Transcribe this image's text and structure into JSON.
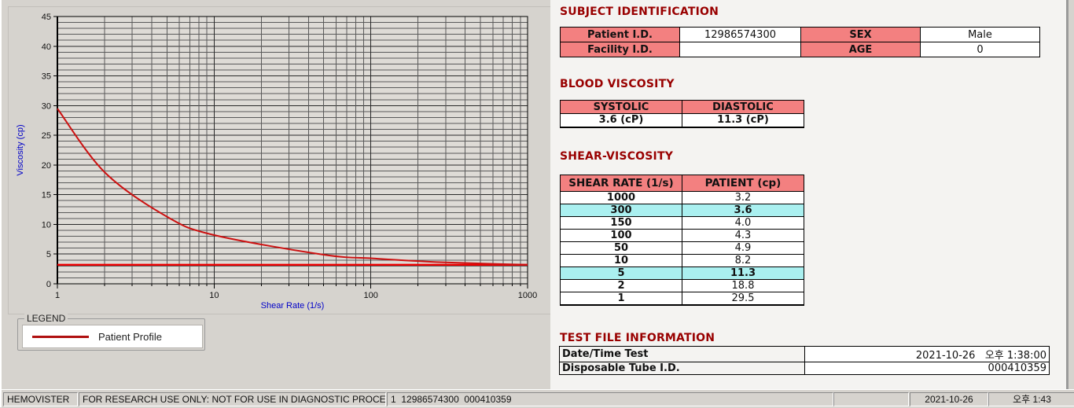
{
  "subject_identification": {
    "title": "SUBJECT IDENTIFICATION",
    "rows": [
      {
        "label1": "Patient I.D.",
        "value1": "12986574300",
        "label2": "SEX",
        "value2": "Male"
      },
      {
        "label1": "Facility I.D.",
        "value1": "",
        "label2": "AGE",
        "value2": "0"
      }
    ]
  },
  "blood_viscosity": {
    "title": "BLOOD VISCOSITY",
    "headers": [
      "SYSTOLIC",
      "DIASTOLIC"
    ],
    "values": [
      "3.6 (cP)",
      "11.3 (cP)"
    ]
  },
  "shear_viscosity": {
    "title": "SHEAR-VISCOSITY",
    "headers": [
      "SHEAR RATE (1/s)",
      "PATIENT (cp)"
    ],
    "rows": [
      {
        "rate": "1000",
        "patient": "3.2",
        "highlight": false
      },
      {
        "rate": "300",
        "patient": "3.6",
        "highlight": true
      },
      {
        "rate": "150",
        "patient": "4.0",
        "highlight": false
      },
      {
        "rate": "100",
        "patient": "4.3",
        "highlight": false
      },
      {
        "rate": "50",
        "patient": "4.9",
        "highlight": false
      },
      {
        "rate": "10",
        "patient": "8.2",
        "highlight": false
      },
      {
        "rate": "5",
        "patient": "11.3",
        "highlight": true
      },
      {
        "rate": "2",
        "patient": "18.8",
        "highlight": false
      },
      {
        "rate": "1",
        "patient": "29.5",
        "highlight": false
      }
    ]
  },
  "test_file_information": {
    "title": "TEST FILE INFORMATION",
    "rows": [
      {
        "label": "Date/Time Test",
        "value": "2021-10-26   오후 1:38:00"
      },
      {
        "label": "Disposable Tube I.D.",
        "value": "000410359"
      }
    ]
  },
  "legend": {
    "group_label": "LEGEND",
    "entries": [
      {
        "label": "Patient Profile",
        "color": "#b01010"
      }
    ]
  },
  "status_bar": {
    "items": [
      "HEMOVISTER",
      "FOR RESEARCH USE ONLY: NOT FOR USE IN DIAGNOSTIC PROCEDURES",
      "1  12986574300  000410359",
      "",
      "2021-10-26",
      "오후 1:43"
    ]
  },
  "colors": {
    "header_red": "#990000",
    "cell_salmon": "#f38080",
    "highlight_cyan": "#aaf0f0",
    "curve_red": "#cc1111",
    "baseline_red": "#ee0000",
    "axis_blue": "#0000c8",
    "window_gray": "#d6d3ce"
  },
  "chart_data": {
    "type": "line",
    "x_scale": "log",
    "x": [
      1,
      2,
      5,
      10,
      50,
      100,
      150,
      300,
      1000
    ],
    "series": [
      {
        "name": "Patient Profile",
        "values": [
          29.5,
          18.8,
          11.3,
          8.2,
          4.9,
          4.3,
          4.0,
          3.6,
          3.2
        ],
        "color": "#cc1111"
      }
    ],
    "baseline": {
      "value": 3.2,
      "color": "#ee0000"
    },
    "title": "",
    "xlabel": "Shear Rate (1/s)",
    "ylabel": "Viscosity (cp)",
    "xlim": [
      1,
      1000
    ],
    "ylim": [
      0,
      45
    ],
    "x_major_ticks": [
      1,
      10,
      100,
      1000
    ],
    "y_major_ticks": [
      0,
      5,
      10,
      15,
      20,
      25,
      30,
      35,
      40,
      45
    ],
    "y_minor_step": 1,
    "grid": "both-minor",
    "legend_position": "below-left"
  }
}
